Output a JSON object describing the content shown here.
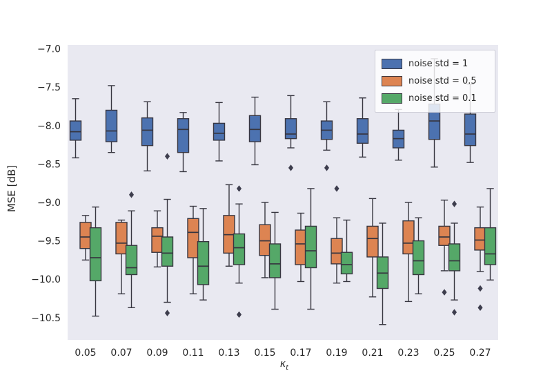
{
  "chart_data": {
    "type": "boxplot",
    "title": "",
    "ylabel": "MSE [dB]",
    "xlabel_base": "κ",
    "xlabel_sub": "t",
    "plot_bg": "#e9e9f1",
    "edge_color": "#373640",
    "flier_color": "#3d3d4d",
    "text_color": "#262626",
    "grid": false,
    "legend_position": "upper right",
    "ylim": [
      -10.79,
      -6.95
    ],
    "ytick_values": [
      -7.0,
      -7.5,
      -8.0,
      -8.5,
      -9.0,
      -9.5,
      -10.0,
      -10.5
    ],
    "ytick_labels": [
      "−7.0",
      "−7.5",
      "−8.0",
      "−8.5",
      "−9.0",
      "−9.5",
      "−10.0",
      "−10.5"
    ],
    "categories": [
      "0.05",
      "0.07",
      "0.09",
      "0.11",
      "0.13",
      "0.15",
      "0.17",
      "0.19",
      "0.21",
      "0.23",
      "0.25",
      "0.27"
    ],
    "legend": [
      {
        "label": "noise std = 1",
        "color": "#4C72B0"
      },
      {
        "label": "noise std = 0.5",
        "color": "#DD8452"
      },
      {
        "label": "noise std = 0.1",
        "color": "#55A868"
      }
    ],
    "series": [
      {
        "name": "noise std = 1",
        "color": "#4C72B0",
        "boxes": [
          {
            "lo": -8.42,
            "q1": -8.19,
            "med": -8.08,
            "q3": -7.94,
            "hi": -7.65,
            "fliers": []
          },
          {
            "lo": -8.35,
            "q1": -8.21,
            "med": -8.07,
            "q3": -7.8,
            "hi": -7.48,
            "fliers": []
          },
          {
            "lo": -8.59,
            "q1": -8.26,
            "med": -8.06,
            "q3": -7.9,
            "hi": -7.69,
            "fliers": []
          },
          {
            "lo": -8.6,
            "q1": -8.35,
            "med": -8.05,
            "q3": -7.91,
            "hi": -7.83,
            "fliers": []
          },
          {
            "lo": -8.46,
            "q1": -8.19,
            "med": -8.1,
            "q3": -7.97,
            "hi": -7.7,
            "fliers": []
          },
          {
            "lo": -8.51,
            "q1": -8.21,
            "med": -8.05,
            "q3": -7.87,
            "hi": -7.63,
            "fliers": []
          },
          {
            "lo": -8.29,
            "q1": -8.17,
            "med": -8.11,
            "q3": -7.91,
            "hi": -7.61,
            "fliers": [
              -8.55
            ]
          },
          {
            "lo": -8.32,
            "q1": -8.18,
            "med": -8.06,
            "q3": -7.94,
            "hi": -7.69,
            "fliers": [
              -8.55
            ]
          },
          {
            "lo": -8.41,
            "q1": -8.23,
            "med": -8.11,
            "q3": -7.91,
            "hi": -7.64,
            "fliers": []
          },
          {
            "lo": -8.45,
            "q1": -8.29,
            "med": -8.17,
            "q3": -8.06,
            "hi": -7.79,
            "fliers": []
          },
          {
            "lo": -8.54,
            "q1": -8.18,
            "med": -7.94,
            "q3": -7.72,
            "hi": -7.13,
            "fliers": []
          },
          {
            "lo": -8.48,
            "q1": -8.26,
            "med": -8.11,
            "q3": -7.85,
            "hi": -7.46,
            "fliers": []
          }
        ]
      },
      {
        "name": "noise std = 0.5",
        "color": "#DD8452",
        "boxes": [
          {
            "lo": -9.75,
            "q1": -9.6,
            "med": -9.45,
            "q3": -9.26,
            "hi": -9.17,
            "fliers": []
          },
          {
            "lo": -10.19,
            "q1": -9.67,
            "med": -9.53,
            "q3": -9.26,
            "hi": -9.23,
            "fliers": []
          },
          {
            "lo": -9.84,
            "q1": -9.65,
            "med": -9.44,
            "q3": -9.33,
            "hi": -9.11,
            "fliers": []
          },
          {
            "lo": -10.19,
            "q1": -9.72,
            "med": -9.39,
            "q3": -9.21,
            "hi": -9.05,
            "fliers": []
          },
          {
            "lo": -9.83,
            "q1": -9.66,
            "med": -9.42,
            "q3": -9.17,
            "hi": -8.77,
            "fliers": []
          },
          {
            "lo": -9.98,
            "q1": -9.69,
            "med": -9.5,
            "q3": -9.29,
            "hi": -9.0,
            "fliers": []
          },
          {
            "lo": -10.03,
            "q1": -9.81,
            "med": -9.54,
            "q3": -9.36,
            "hi": -9.14,
            "fliers": []
          },
          {
            "lo": -10.05,
            "q1": -9.8,
            "med": -9.66,
            "q3": -9.47,
            "hi": -9.2,
            "fliers": [
              -8.82
            ]
          },
          {
            "lo": -10.23,
            "q1": -9.71,
            "med": -9.47,
            "q3": -9.31,
            "hi": -8.95,
            "fliers": []
          },
          {
            "lo": -10.29,
            "q1": -9.67,
            "med": -9.53,
            "q3": -9.24,
            "hi": -9.0,
            "fliers": []
          },
          {
            "lo": -9.89,
            "q1": -9.56,
            "med": -9.45,
            "q3": -9.31,
            "hi": -8.97,
            "fliers": [
              -10.17
            ]
          },
          {
            "lo": -9.9,
            "q1": -9.62,
            "med": -9.49,
            "q3": -9.33,
            "hi": -9.06,
            "fliers": [
              -10.12,
              -10.37
            ]
          }
        ]
      },
      {
        "name": "noise std = 0.1",
        "color": "#55A868",
        "boxes": [
          {
            "lo": -10.48,
            "q1": -10.02,
            "med": -9.72,
            "q3": -9.33,
            "hi": -9.06,
            "fliers": []
          },
          {
            "lo": -10.37,
            "q1": -9.94,
            "med": -9.85,
            "q3": -9.56,
            "hi": -9.11,
            "fliers": [
              -8.9
            ]
          },
          {
            "lo": -10.3,
            "q1": -9.83,
            "med": -9.66,
            "q3": -9.45,
            "hi": -8.96,
            "fliers": [
              -8.4,
              -10.44
            ]
          },
          {
            "lo": -10.27,
            "q1": -10.07,
            "med": -9.83,
            "q3": -9.51,
            "hi": -9.08,
            "fliers": []
          },
          {
            "lo": -10.05,
            "q1": -9.81,
            "med": -9.59,
            "q3": -9.41,
            "hi": -9.02,
            "fliers": [
              -8.82,
              -10.46
            ]
          },
          {
            "lo": -10.39,
            "q1": -9.98,
            "med": -9.8,
            "q3": -9.54,
            "hi": -9.13,
            "fliers": []
          },
          {
            "lo": -10.39,
            "q1": -9.85,
            "med": -9.63,
            "q3": -9.31,
            "hi": -8.82,
            "fliers": []
          },
          {
            "lo": -10.03,
            "q1": -9.93,
            "med": -9.81,
            "q3": -9.65,
            "hi": -9.23,
            "fliers": []
          },
          {
            "lo": -10.59,
            "q1": -10.12,
            "med": -9.92,
            "q3": -9.71,
            "hi": -9.27,
            "fliers": []
          },
          {
            "lo": -10.19,
            "q1": -9.94,
            "med": -9.76,
            "q3": -9.5,
            "hi": -9.2,
            "fliers": []
          },
          {
            "lo": -10.27,
            "q1": -9.89,
            "med": -9.76,
            "q3": -9.54,
            "hi": -9.27,
            "fliers": [
              -9.02,
              -10.43
            ]
          },
          {
            "lo": -10.01,
            "q1": -9.81,
            "med": -9.67,
            "q3": -9.33,
            "hi": -8.82,
            "fliers": []
          }
        ]
      }
    ]
  }
}
